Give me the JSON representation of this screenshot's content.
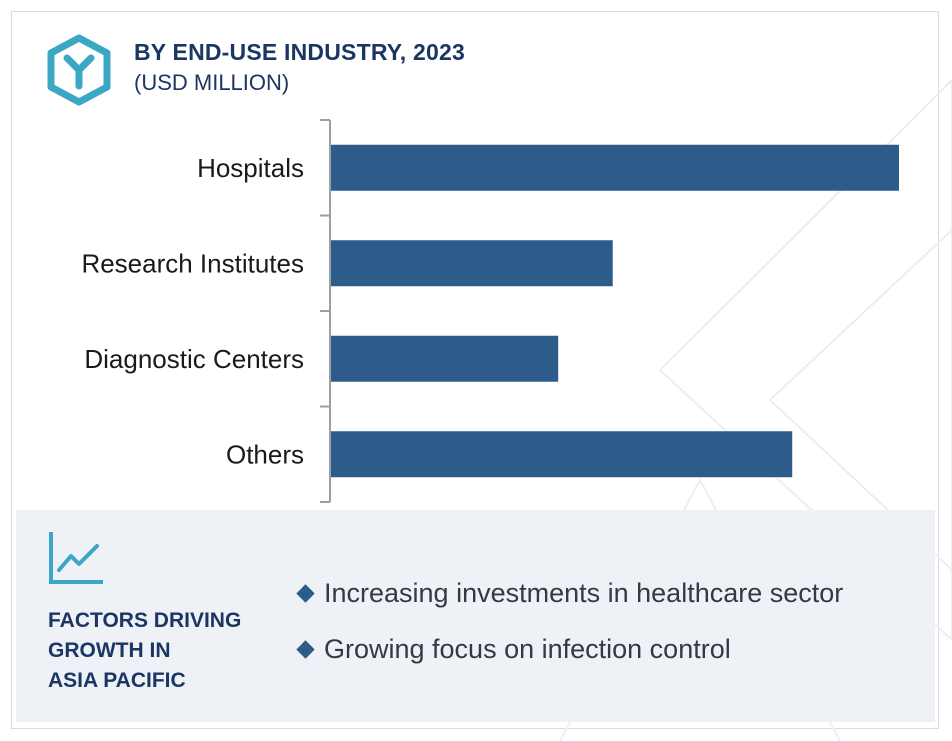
{
  "header": {
    "title": "BY END-USE INDUSTRY, 2023",
    "subtitle": "(USD MILLION)"
  },
  "colors": {
    "bar": "#2d5b8a",
    "title": "#1c3664",
    "accent": "#3ba7c4",
    "panel": "#eef1f6"
  },
  "chart_data": {
    "type": "bar",
    "orientation": "horizontal",
    "title": "BY END-USE INDUSTRY, 2023",
    "subtitle": "(USD MILLION)",
    "categories": [
      "Hospitals",
      "Research Institutes",
      "Diagnostic Centers",
      "Others"
    ],
    "values": [
      100,
      49.6,
      40.0,
      81.2
    ],
    "xlim": [
      0,
      100
    ],
    "grid": false,
    "legend": "none"
  },
  "factors": {
    "title_lines": [
      "FACTORS DRIVING",
      "GROWTH IN",
      "ASIA PACIFIC"
    ],
    "items": [
      "Increasing investments in healthcare sector",
      "Growing focus on infection control"
    ]
  }
}
